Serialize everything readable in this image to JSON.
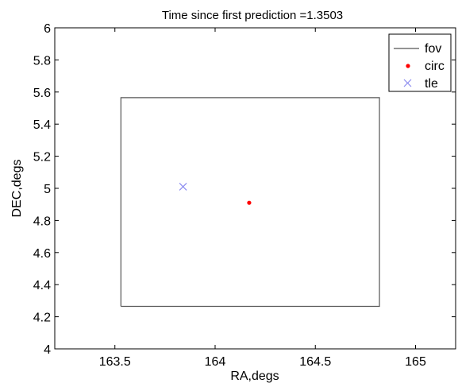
{
  "chart_data": {
    "type": "scatter",
    "title": "Time since first prediction =1.3503",
    "xlabel": "RA,degs",
    "ylabel": "DEC,degs",
    "xlim": [
      163.2,
      165.2
    ],
    "ylim": [
      4,
      6
    ],
    "xticks": [
      163.5,
      164,
      164.5,
      165
    ],
    "xtick_labels": [
      "163.5",
      "164",
      "164.5",
      "165"
    ],
    "yticks": [
      4,
      4.2,
      4.4,
      4.6,
      4.8,
      5,
      5.2,
      5.4,
      5.6,
      5.8,
      6
    ],
    "ytick_labels": [
      "4",
      "4.2",
      "4.4",
      "4.6",
      "4.8",
      "5",
      "5.2",
      "5.4",
      "5.6",
      "5.8",
      "6"
    ],
    "grid": false,
    "legend_position": "top-right",
    "series": [
      {
        "name": "fov",
        "kind": "rectangle",
        "color": "#555555",
        "x": [
          163.53,
          164.82,
          164.82,
          163.53,
          163.53
        ],
        "y": [
          4.265,
          4.265,
          5.565,
          5.565,
          4.265
        ]
      },
      {
        "name": "circ",
        "kind": "point",
        "marker": "dot",
        "color": "#ff0000",
        "x": [
          164.17
        ],
        "y": [
          4.91
        ]
      },
      {
        "name": "tle",
        "kind": "point",
        "marker": "x",
        "color": "#8c8cf0",
        "x": [
          163.84
        ],
        "y": [
          5.01
        ]
      }
    ]
  }
}
